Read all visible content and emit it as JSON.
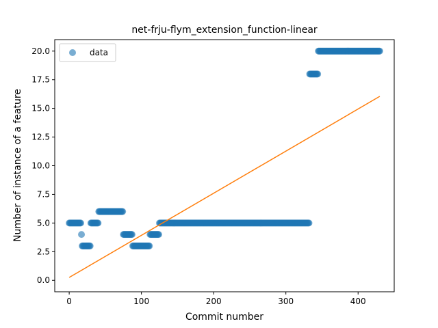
{
  "chart_data": {
    "type": "scatter",
    "title": "net-frju-flym_extension_function-linear",
    "xlabel": "Commit number",
    "ylabel": "Number of instance of a feature",
    "xlim": [
      -20,
      450
    ],
    "ylim": [
      -1.0,
      21.0
    ],
    "xticks": [
      "0",
      "100",
      "200",
      "300",
      "400"
    ],
    "yticks": [
      "0.0",
      "2.5",
      "5.0",
      "7.5",
      "10.0",
      "12.5",
      "15.0",
      "17.5",
      "20.0"
    ],
    "grid": false,
    "legend": {
      "position": "top-left",
      "entries": [
        "data"
      ]
    },
    "colors": {
      "data": "#1f77b4",
      "fit": "#ff7f0e"
    },
    "segments": [
      {
        "x_start": 0,
        "x_end": 16,
        "y": 5
      },
      {
        "x_start": 17,
        "x_end": 17,
        "y": 4
      },
      {
        "x_start": 18,
        "x_end": 29,
        "y": 3
      },
      {
        "x_start": 30,
        "x_end": 40,
        "y": 5
      },
      {
        "x_start": 41,
        "x_end": 74,
        "y": 6
      },
      {
        "x_start": 75,
        "x_end": 87,
        "y": 4
      },
      {
        "x_start": 88,
        "x_end": 111,
        "y": 3
      },
      {
        "x_start": 112,
        "x_end": 124,
        "y": 4
      },
      {
        "x_start": 125,
        "x_end": 332,
        "y": 5
      },
      {
        "x_start": 333,
        "x_end": 344,
        "y": 18
      },
      {
        "x_start": 345,
        "x_end": 430,
        "y": 20
      }
    ],
    "fit_line": {
      "x": [
        0,
        430
      ],
      "y": [
        0.25,
        16.05
      ]
    }
  }
}
